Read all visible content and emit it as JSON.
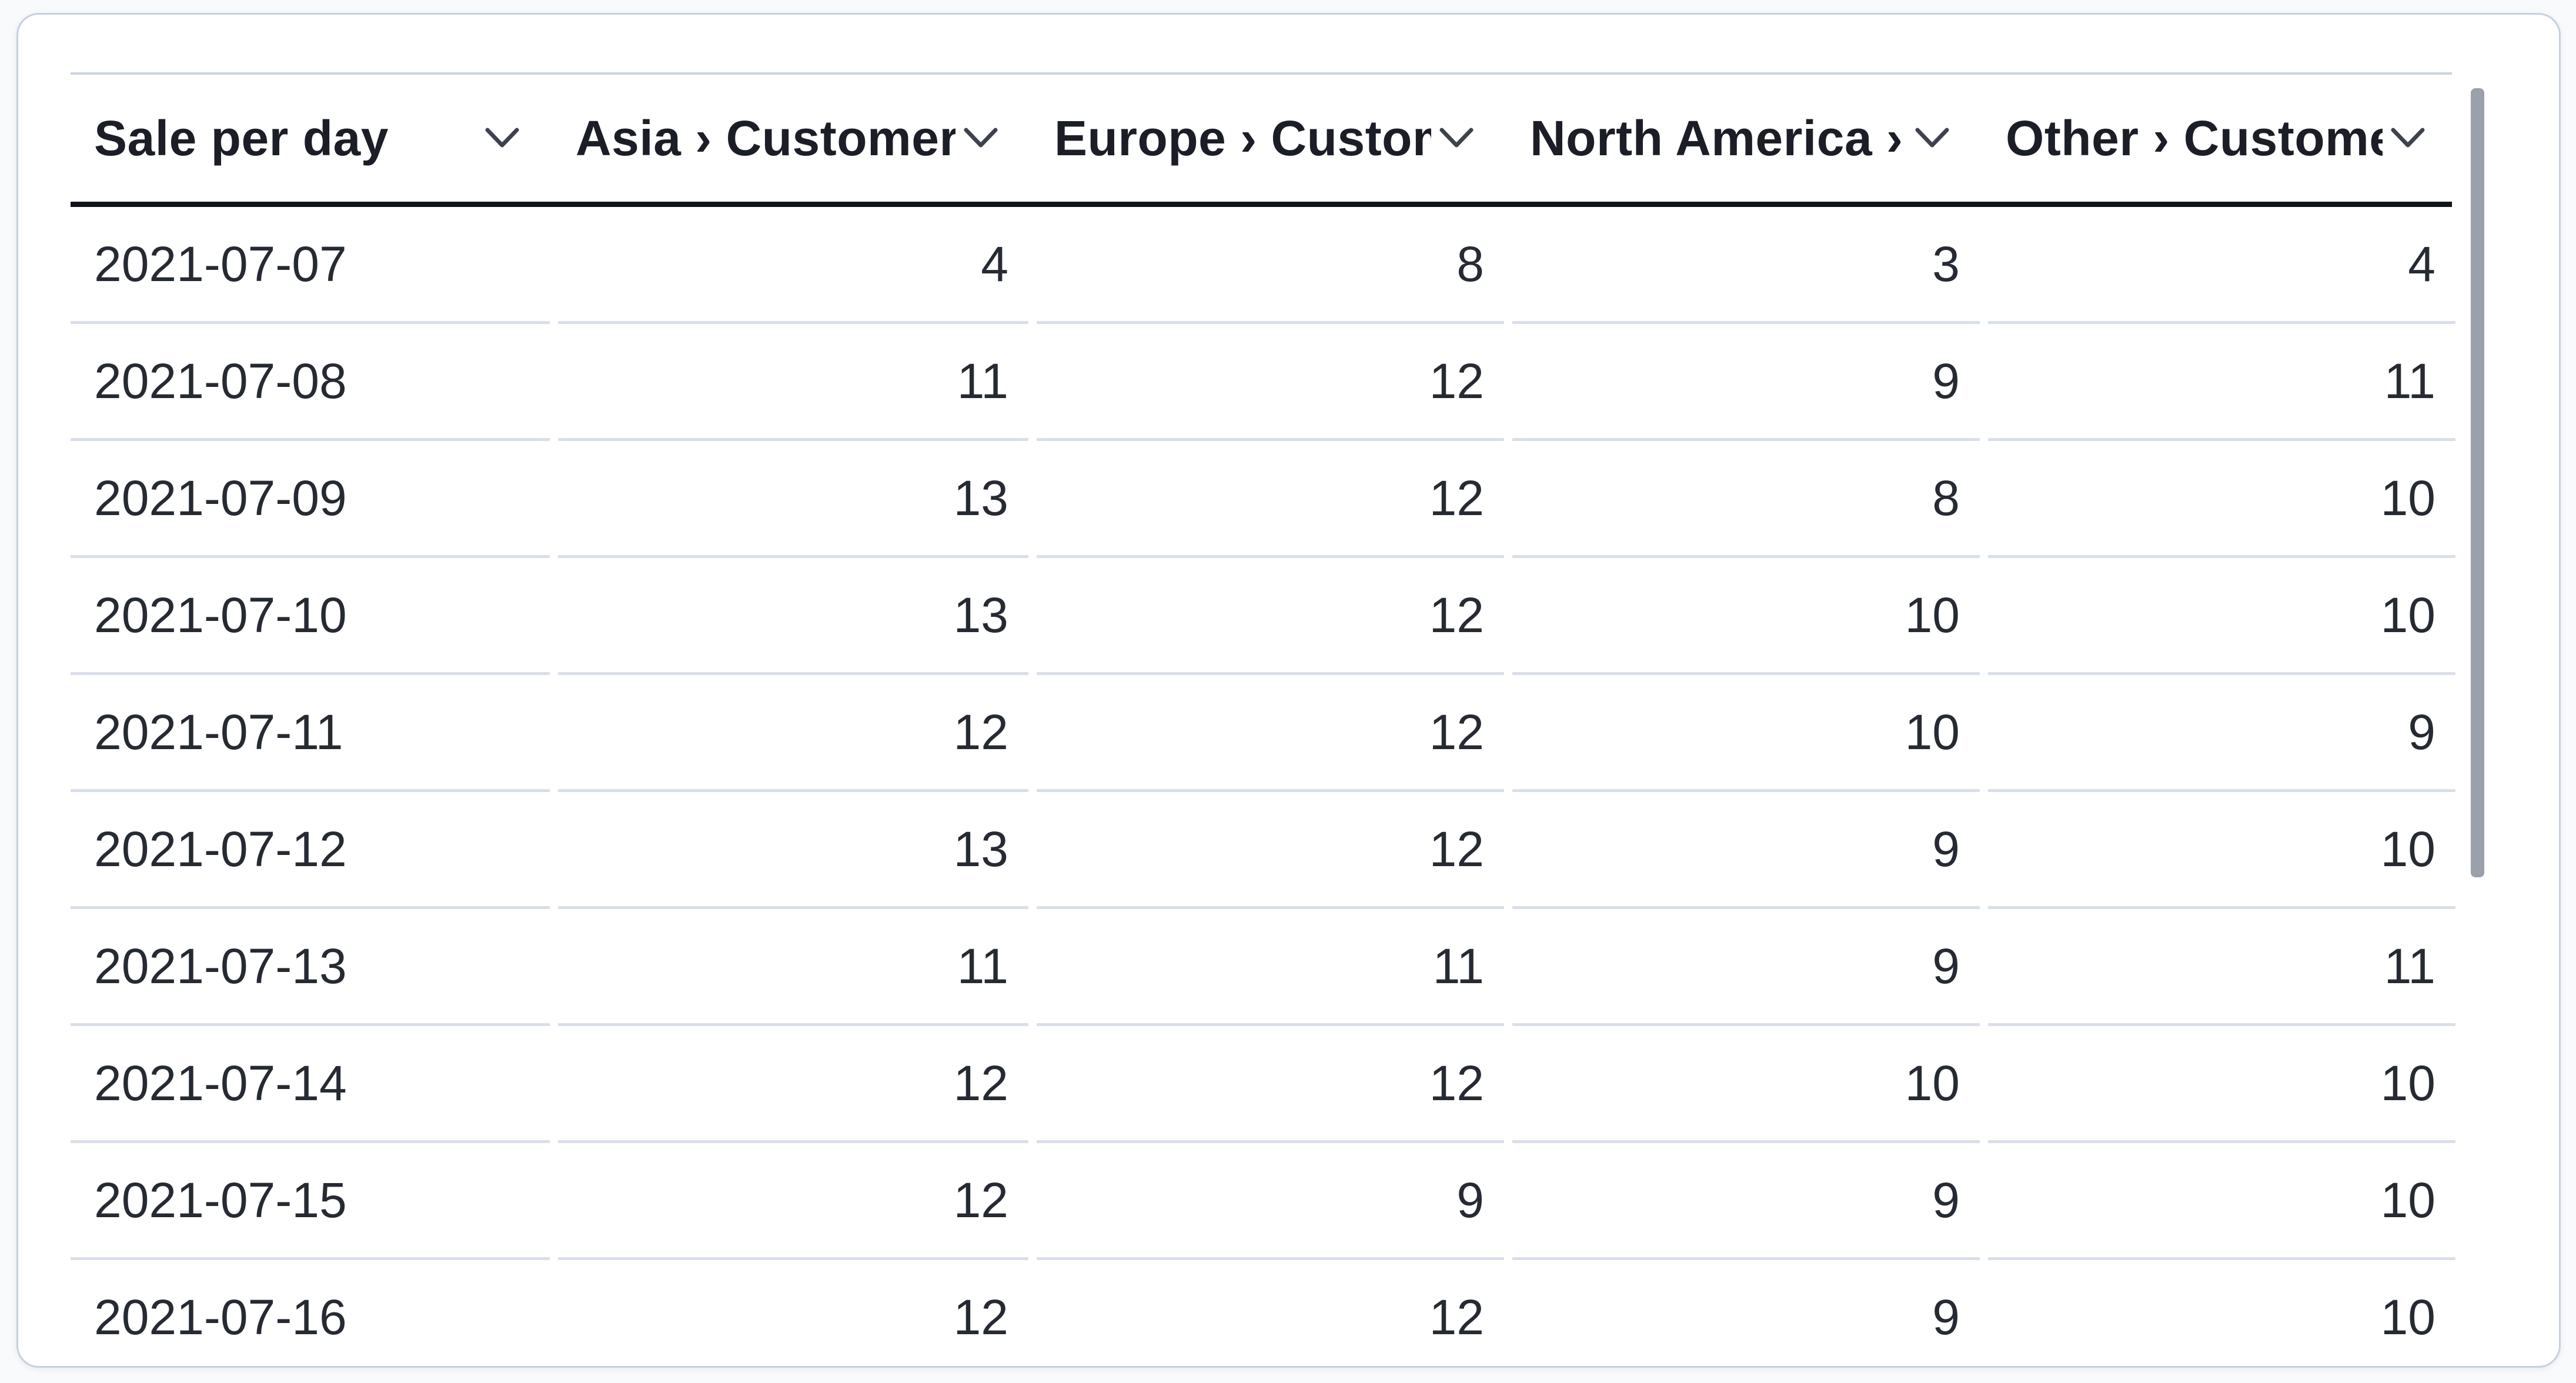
{
  "table": {
    "columns": [
      {
        "label": "Sale per day",
        "sort_icon": "chevron-down-icon"
      },
      {
        "label": "Asia › Customers",
        "sort_icon": "chevron-down-icon"
      },
      {
        "label": "Europe › Customers",
        "sort_icon": "chevron-down-icon"
      },
      {
        "label": "North America › Customers",
        "sort_icon": "chevron-down-icon"
      },
      {
        "label": "Other › Customers",
        "sort_icon": "chevron-down-icon"
      }
    ],
    "rows": [
      [
        "2021-07-07",
        "4",
        "8",
        "3",
        "4"
      ],
      [
        "2021-07-08",
        "11",
        "12",
        "9",
        "11"
      ],
      [
        "2021-07-09",
        "13",
        "12",
        "8",
        "10"
      ],
      [
        "2021-07-10",
        "13",
        "12",
        "10",
        "10"
      ],
      [
        "2021-07-11",
        "12",
        "12",
        "10",
        "9"
      ],
      [
        "2021-07-12",
        "13",
        "12",
        "9",
        "10"
      ],
      [
        "2021-07-13",
        "11",
        "11",
        "9",
        "11"
      ],
      [
        "2021-07-14",
        "12",
        "12",
        "10",
        "10"
      ],
      [
        "2021-07-15",
        "12",
        "9",
        "9",
        "10"
      ],
      [
        "2021-07-16",
        "12",
        "12",
        "9",
        "10"
      ]
    ]
  },
  "chart_data": {
    "type": "table",
    "title": "Sale per day",
    "categories": [
      "2021-07-07",
      "2021-07-08",
      "2021-07-09",
      "2021-07-10",
      "2021-07-11",
      "2021-07-12",
      "2021-07-13",
      "2021-07-14",
      "2021-07-15",
      "2021-07-16"
    ],
    "series": [
      {
        "name": "Asia › Customers",
        "values": [
          4,
          11,
          13,
          13,
          12,
          13,
          11,
          12,
          12,
          12
        ]
      },
      {
        "name": "Europe › Customers",
        "values": [
          8,
          12,
          12,
          12,
          12,
          12,
          11,
          12,
          9,
          12
        ]
      },
      {
        "name": "North America › Customers",
        "values": [
          3,
          9,
          8,
          10,
          10,
          9,
          9,
          10,
          9,
          9
        ]
      },
      {
        "name": "Other › Customers",
        "values": [
          4,
          11,
          10,
          10,
          9,
          10,
          11,
          10,
          10,
          10
        ]
      }
    ]
  },
  "colors": {
    "card_background": "#ffffff",
    "card_border": "#c6d1e0",
    "header_rule": "#101319",
    "row_separator": "#d9dfea",
    "text": "#262a32",
    "header_text": "#1b1e26",
    "scrollbar_thumb": "#9ba1aa"
  }
}
